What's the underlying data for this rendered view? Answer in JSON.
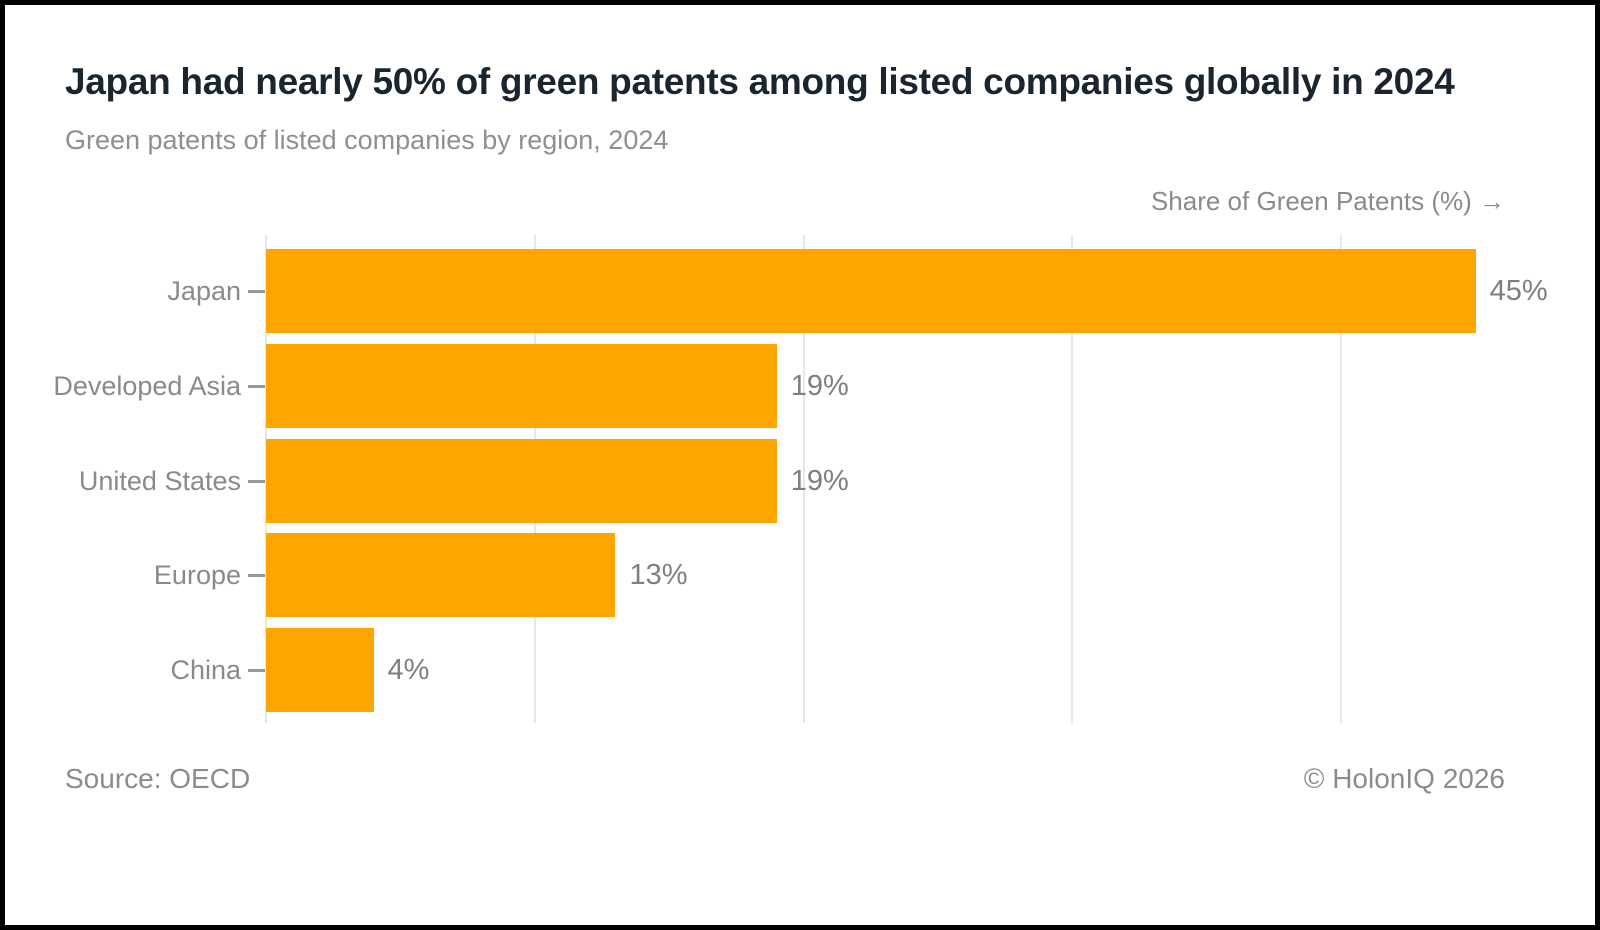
{
  "header": {
    "title": "Japan had nearly 50% of green patents among listed companies globally in 2024",
    "subtitle": "Green patents of listed companies by region, 2024"
  },
  "axis": {
    "label": "Share of Green Patents (%) →"
  },
  "footer": {
    "source": "Source: OECD",
    "copyright": "© HolonIQ 2026"
  },
  "colors": {
    "bar": "#FFA502",
    "title_text": "#1A2530",
    "muted_text": "#8A8A8A",
    "gridline": "#E7E7E7"
  },
  "chart_data": {
    "type": "bar",
    "orientation": "horizontal",
    "title": "Japan had nearly 50% of green patents among listed companies globally in 2024",
    "subtitle": "Green patents of listed companies by region, 2024",
    "xlabel": "Share of Green Patents (%)",
    "ylabel": "",
    "categories": [
      "Japan",
      "Developed Asia",
      "United States",
      "Europe",
      "China"
    ],
    "values": [
      45,
      19,
      19,
      13,
      4
    ],
    "value_labels": [
      "45%",
      "19%",
      "19%",
      "13%",
      "4%"
    ],
    "xlim": [
      0,
      46.5
    ],
    "grid_step": 10,
    "grid": true,
    "legend": false,
    "source": "OECD"
  }
}
